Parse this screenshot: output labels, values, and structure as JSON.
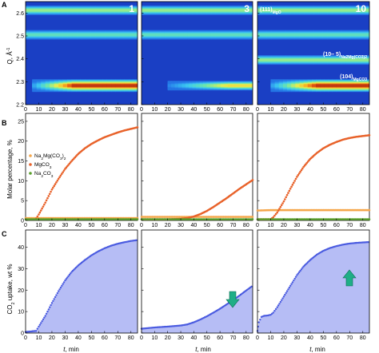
{
  "panel_labels": {
    "A": "A",
    "B": "B",
    "C": "C"
  },
  "chart_data": [
    {
      "type": "heatmap",
      "rows": "A",
      "ylabel_main": "Q, Å",
      "ylabel_sup": "-1",
      "xlim": [
        0,
        85
      ],
      "ylim": [
        2.2,
        2.65
      ],
      "yticks": [
        "2.6",
        "2.5",
        "2.4",
        "2.3",
        "2.2"
      ],
      "xticks": [
        "0",
        "10",
        "20",
        "30",
        "40",
        "50",
        "60",
        "70",
        "80"
      ],
      "panels": [
        {
          "number": "1",
          "bands": [
            {
              "q": 2.612,
              "int": 0.55,
              "start": 0,
              "end": 85
            },
            {
              "q": 2.505,
              "int": 0.45,
              "start": 0,
              "end": 85
            },
            {
              "q": 2.283,
              "int": 1.0,
              "start": 5,
              "end": 85,
              "ramp": 40
            }
          ]
        },
        {
          "number": "3",
          "bands": [
            {
              "q": 2.612,
              "int": 0.55,
              "start": 0,
              "end": 85
            },
            {
              "q": 2.505,
              "int": 0.45,
              "start": 0,
              "end": 85
            },
            {
              "q": 2.283,
              "int": 0.7,
              "start": 20,
              "end": 85,
              "ramp": 60
            }
          ]
        },
        {
          "number": "10",
          "bands": [
            {
              "q": 2.612,
              "int": 0.55,
              "start": 0,
              "end": 85
            },
            {
              "q": 2.505,
              "int": 0.45,
              "start": 0,
              "end": 85
            },
            {
              "q": 2.395,
              "int": 0.55,
              "start": 0,
              "end": 85
            },
            {
              "q": 2.283,
              "int": 1.0,
              "start": 10,
              "end": 85,
              "ramp": 45
            }
          ]
        }
      ],
      "annotations": [
        {
          "main": "(111)",
          "sub": "MgO"
        },
        {
          "main": "(10‒ 5)",
          "sub": "Na2Mg(CO3)2"
        },
        {
          "main": "(104)",
          "sub": "MgCO3"
        }
      ]
    },
    {
      "type": "scatter",
      "rows": "B",
      "ylabel": "Molar percentage, %",
      "xlim": [
        0,
        85
      ],
      "ylim": [
        0,
        27
      ],
      "yticks": [
        "0",
        "5",
        "10",
        "15",
        "20",
        "25"
      ],
      "xticks": [
        "0",
        "10",
        "20",
        "30",
        "40",
        "50",
        "60",
        "70",
        "80"
      ],
      "legend": [
        {
          "name_main": "Na",
          "parts": [
            [
              "Na",
              "2",
              "Mg(CO",
              "3",
              ")",
              "2"
            ]
          ],
          "label": "Na2Mg(CO3)2",
          "color": "#f5a64a"
        },
        {
          "label": "MgCO3",
          "color": "#e8622a"
        },
        {
          "label": "Na2CO3",
          "color": "#5aa02c"
        }
      ],
      "panels": [
        {
          "series": [
            {
              "name": "Na2Mg(CO3)2",
              "color": "#f5a64a",
              "x": [
                0,
                10,
                20,
                30,
                40,
                50,
                60,
                70,
                85
              ],
              "y": [
                0.6,
                0.6,
                0.6,
                0.6,
                0.6,
                0.6,
                0.6,
                0.6,
                0.6
              ]
            },
            {
              "name": "MgCO3",
              "color": "#e8622a",
              "x": [
                8,
                10,
                15,
                20,
                25,
                30,
                35,
                40,
                45,
                50,
                55,
                60,
                65,
                70,
                75,
                80,
                85
              ],
              "y": [
                0.5,
                1.5,
                4.5,
                7.8,
                10.5,
                13,
                15,
                16.8,
                18.2,
                19.3,
                20.2,
                21,
                21.6,
                22.2,
                22.7,
                23.1,
                23.5
              ]
            },
            {
              "name": "Na2CO3",
              "color": "#5aa02c",
              "x": [
                0,
                10,
                20,
                30,
                40,
                50,
                60,
                70,
                85
              ],
              "y": [
                0.3,
                0.3,
                0.3,
                0.3,
                0.3,
                0.3,
                0.3,
                0.3,
                0.3
              ]
            }
          ]
        },
        {
          "series": [
            {
              "name": "Na2Mg(CO3)2",
              "color": "#f5a64a",
              "x": [
                0,
                10,
                20,
                30,
                40,
                50,
                60,
                70,
                85
              ],
              "y": [
                0.9,
                0.9,
                0.9,
                0.9,
                0.9,
                0.9,
                0.9,
                0.9,
                0.9
              ]
            },
            {
              "name": "MgCO3",
              "color": "#e8622a",
              "x": [
                0,
                10,
                20,
                30,
                35,
                40,
                45,
                50,
                55,
                60,
                65,
                70,
                75,
                80,
                85
              ],
              "y": [
                0.3,
                0.3,
                0.3,
                0.4,
                0.6,
                1.0,
                1.6,
                2.4,
                3.4,
                4.5,
                5.6,
                6.8,
                8.0,
                9.1,
                10.2
              ]
            },
            {
              "name": "Na2CO3",
              "color": "#5aa02c",
              "x": [
                0,
                10,
                20,
                30,
                40,
                50,
                60,
                70,
                85
              ],
              "y": [
                0.3,
                0.3,
                0.3,
                0.3,
                0.3,
                0.3,
                0.3,
                0.3,
                0.3
              ]
            }
          ]
        },
        {
          "series": [
            {
              "name": "Na2Mg(CO3)2",
              "color": "#f5a64a",
              "x": [
                0,
                10,
                20,
                30,
                40,
                50,
                60,
                70,
                85
              ],
              "y": [
                2.5,
                2.6,
                2.6,
                2.6,
                2.6,
                2.6,
                2.6,
                2.6,
                2.6
              ]
            },
            {
              "name": "MgCO3",
              "color": "#e8622a",
              "x": [
                0,
                10,
                12,
                15,
                20,
                25,
                30,
                35,
                40,
                45,
                50,
                55,
                60,
                65,
                70,
                75,
                80,
                85
              ],
              "y": [
                0.3,
                0.3,
                0.8,
                2,
                4.8,
                8,
                11,
                13.5,
                15.5,
                17,
                18.2,
                19.1,
                19.8,
                20.4,
                20.8,
                21.1,
                21.3,
                21.5
              ]
            },
            {
              "name": "Na2CO3",
              "color": "#5aa02c",
              "x": [
                0,
                10,
                20,
                30,
                40,
                50,
                60,
                70,
                85
              ],
              "y": [
                0.3,
                0.3,
                0.3,
                0.3,
                0.3,
                0.3,
                0.3,
                0.3,
                0.3
              ]
            }
          ]
        }
      ]
    },
    {
      "type": "area",
      "rows": "C",
      "ylabel_main": "CO",
      "ylabel_sub": "2",
      "ylabel_rest": " uptake, wt %",
      "xlabel_italic": "t",
      "xlabel_rest": ", min",
      "xlim": [
        0,
        85
      ],
      "ylim": [
        0,
        48
      ],
      "yticks": [
        "0",
        "10",
        "20",
        "30",
        "40"
      ],
      "xticks": [
        "0",
        "10",
        "20",
        "30",
        "40",
        "50",
        "60",
        "70",
        "80"
      ],
      "panels": [
        {
          "arrow": "none",
          "x": [
            0,
            8,
            10,
            15,
            20,
            25,
            30,
            35,
            40,
            45,
            50,
            55,
            60,
            65,
            70,
            75,
            80,
            85
          ],
          "y": [
            0.5,
            1,
            3,
            8,
            14,
            19.5,
            24.5,
            28.5,
            31.5,
            34,
            36.2,
            38,
            39.5,
            40.7,
            41.6,
            42.3,
            42.9,
            43.3
          ]
        },
        {
          "arrow": "down",
          "x": [
            0,
            5,
            10,
            20,
            30,
            35,
            40,
            45,
            50,
            55,
            60,
            65,
            70,
            75,
            80,
            85
          ],
          "y": [
            2,
            2.3,
            2.6,
            3.0,
            3.5,
            4.0,
            5.0,
            6.3,
            7.8,
            9.5,
            11.3,
            13.3,
            15.3,
            17.5,
            19.8,
            22
          ]
        },
        {
          "arrow": "up",
          "x": [
            0,
            1,
            3,
            5,
            8,
            10,
            12,
            15,
            20,
            25,
            30,
            35,
            40,
            45,
            50,
            55,
            60,
            65,
            70,
            75,
            80,
            85
          ],
          "y": [
            1,
            5,
            7.5,
            8,
            8.2,
            8.5,
            9.5,
            12,
            17,
            22,
            27,
            31,
            34,
            36.5,
            38.3,
            39.6,
            40.5,
            41.2,
            41.7,
            42,
            42.2,
            42.4
          ]
        }
      ]
    }
  ]
}
